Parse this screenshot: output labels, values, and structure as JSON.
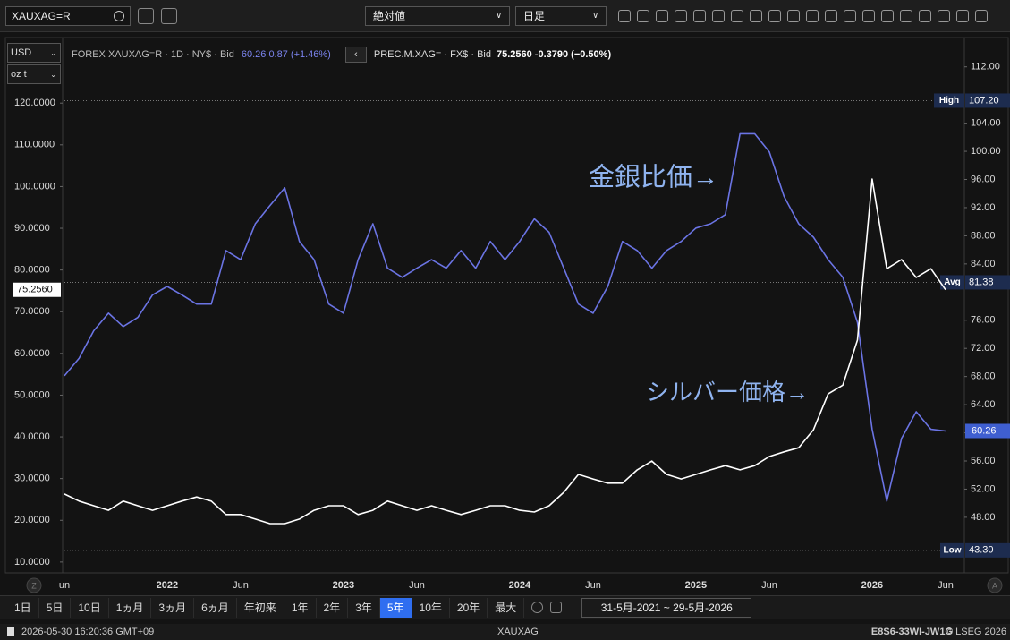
{
  "toolbar": {
    "symbol": "XAUXAG=R",
    "mode": "絶対値",
    "interval": "日足"
  },
  "units": {
    "currency": "USD",
    "unit": "oz t"
  },
  "legend": {
    "primary_desc": "FOREX XAUXAG=R · 1D · NY$ · Bid",
    "primary_quote": "60.26 0.87 (+1.46%)",
    "secondary_desc": "PREC.M.XAG= · FX$ · Bid",
    "secondary_quote": "75.2560 -0.3790 (−0.50%)"
  },
  "chart_data": {
    "type": "line",
    "categories": [
      "un",
      null,
      null,
      null,
      null,
      null,
      null,
      "2022",
      null,
      null,
      null,
      null,
      "Jun",
      null,
      null,
      null,
      null,
      null,
      null,
      "2023",
      null,
      null,
      null,
      null,
      "Jun",
      null,
      null,
      null,
      null,
      null,
      null,
      "2024",
      null,
      null,
      null,
      null,
      "Jun",
      null,
      null,
      null,
      null,
      null,
      null,
      "2025",
      null,
      null,
      null,
      null,
      "Jun",
      null,
      null,
      null,
      null,
      null,
      null,
      "2026",
      null,
      null,
      null,
      null,
      "Jun"
    ],
    "series": [
      {
        "color": "#6b74e4",
        "axis": "y2",
        "last_label": "60.26",
        "values": [
          68.1,
          70.6,
          74.5,
          77,
          75.1,
          76.4,
          79.6,
          80.8,
          79.6,
          78.3,
          78.3,
          85.9,
          84.6,
          89.7,
          92.3,
          94.8,
          87.2,
          84.6,
          78.3,
          77,
          84.6,
          89.7,
          83.4,
          82.1,
          83.4,
          84.6,
          83.4,
          85.9,
          83.4,
          87.2,
          84.6,
          87.2,
          90.4,
          88.5,
          83.4,
          78.3,
          77,
          80.8,
          87.2,
          85.9,
          83.4,
          85.9,
          87.2,
          89.1,
          89.7,
          91,
          102.5,
          102.5,
          99.9,
          93.6,
          89.7,
          87.8,
          84.6,
          82.1,
          75.7,
          60.5,
          50.3,
          59.2,
          63,
          60.5,
          60.26
        ]
      },
      {
        "color": "#ffffff",
        "last_label": "75.2560",
        "values": [
          26.3,
          24.6,
          23.5,
          22.4,
          24.6,
          23.5,
          22.4,
          23.5,
          24.6,
          25.6,
          24.6,
          21.4,
          21.4,
          20.3,
          19.2,
          19.2,
          20.3,
          22.4,
          23.5,
          23.5,
          21.4,
          22.4,
          24.6,
          23.5,
          22.4,
          23.5,
          22.4,
          21.4,
          22.4,
          23.5,
          23.5,
          22.4,
          22,
          23.5,
          26.7,
          31,
          29.9,
          28.9,
          28.9,
          32.1,
          34.2,
          31,
          29.9,
          31,
          32.1,
          33.1,
          32.1,
          33.1,
          35.3,
          36.4,
          37.4,
          41.7,
          50.3,
          52.4,
          63.2,
          101.8,
          80.3,
          82.5,
          78.2,
          80.3,
          75.256
        ]
      }
    ],
    "ylim": [
      7.4,
      129.7
    ],
    "yticks": [
      {
        "value": 10,
        "label": "10.0000"
      },
      {
        "value": 20,
        "label": "20.0000"
      },
      {
        "value": 30,
        "label": "30.0000"
      },
      {
        "value": 40,
        "label": "40.0000"
      },
      {
        "value": 50,
        "label": "50.0000"
      },
      {
        "value": 60,
        "label": "60.0000"
      },
      {
        "value": 70,
        "label": "70.0000"
      },
      {
        "value": 80,
        "label": "80.0000"
      },
      {
        "value": 90,
        "label": "90.0000"
      },
      {
        "value": 100,
        "label": "100.0000"
      },
      {
        "value": 110,
        "label": "110.0000"
      },
      {
        "value": 120,
        "label": "120.0000"
      }
    ],
    "y2lim": [
      40.1,
      112.6
    ],
    "y2ticks": [
      {
        "value": 48,
        "label": "48.00"
      },
      {
        "value": 52,
        "label": "52.00"
      },
      {
        "value": 56,
        "label": "56.00"
      },
      {
        "value": 60,
        "label": "60.00"
      },
      {
        "value": 64,
        "label": "64.00"
      },
      {
        "value": 68,
        "label": "68.00"
      },
      {
        "value": 72,
        "label": "72.00"
      },
      {
        "value": 76,
        "label": "76.00"
      },
      {
        "value": 84,
        "label": "84.00"
      },
      {
        "value": 88,
        "label": "88.00"
      },
      {
        "value": 92,
        "label": "92.00"
      },
      {
        "value": 96,
        "label": "96.00"
      },
      {
        "value": 100,
        "label": "100.00"
      },
      {
        "value": 104,
        "label": "104.00"
      },
      {
        "value": 112,
        "label": "112.00"
      }
    ],
    "ref_lines": [
      {
        "label": "High",
        "value": 107.2,
        "value_label": "107.20"
      },
      {
        "label": "Avg",
        "value": 81.38,
        "value_label": "81.38"
      },
      {
        "label": "Low",
        "value": 43.3,
        "value_label": "43.30"
      }
    ],
    "annotations": [
      {
        "text": "金銀比価→"
      },
      {
        "text": "シルバー価格→"
      }
    ]
  },
  "periods": [
    "1日",
    "5日",
    "10日",
    "1ヵ月",
    "3ヵ月",
    "6ヵ月",
    "年初来",
    "1年",
    "2年",
    "3年",
    "5年",
    "10年",
    "20年",
    "最大"
  ],
  "active_period": "5年",
  "date_range": "31-5月-2021 ~ 29-5月-2026",
  "corner_buttons": [
    "Z",
    "A"
  ],
  "status": {
    "timestamp": "2026-05-30 16:20:36 GMT+09",
    "symbol": "XAUXAG",
    "id": "E8S6-33WI-JW1G",
    "copyright": "© LSEG 2026"
  }
}
